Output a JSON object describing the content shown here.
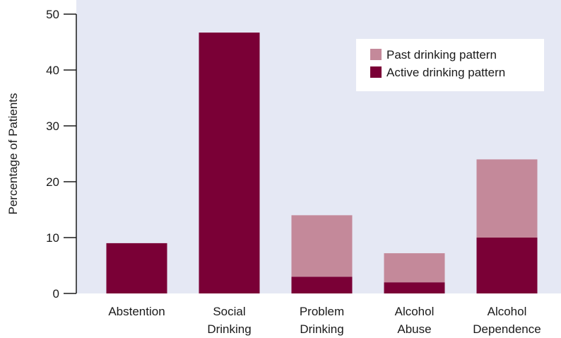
{
  "chart_data": {
    "type": "bar",
    "stacked": true,
    "categories": [
      [
        "Abstention"
      ],
      [
        "Social",
        "Drinking"
      ],
      [
        "Problem",
        "Drinking"
      ],
      [
        "Alcohol",
        "Abuse"
      ],
      [
        "Alcohol",
        "Dependence"
      ]
    ],
    "series": [
      {
        "name": "Active drinking pattern",
        "values": [
          9,
          46.7,
          3,
          2,
          10
        ],
        "color": "#7a0036"
      },
      {
        "name": "Past drinking pattern",
        "values": [
          0,
          0,
          11,
          5.2,
          14
        ],
        "color": "#c4899a"
      }
    ],
    "ylabel": "Percentage of Patients",
    "xlabel": "",
    "ylim": [
      0,
      50
    ],
    "yticks": [
      0,
      10,
      20,
      30,
      40,
      50
    ],
    "legend_order": [
      "Past drinking pattern",
      "Active drinking pattern"
    ],
    "legend_position": "top-right",
    "grid": false,
    "plot_background": "#e5e8f4"
  }
}
